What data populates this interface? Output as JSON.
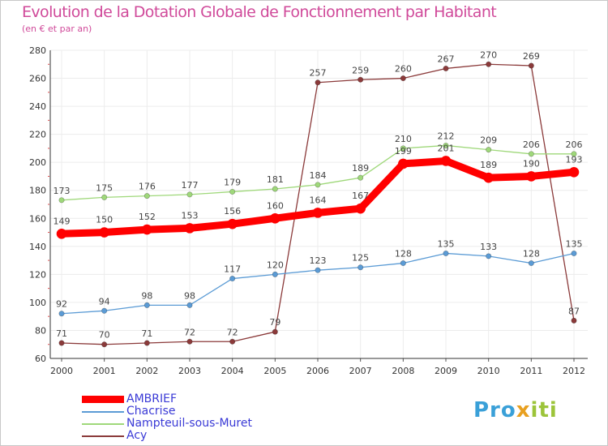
{
  "title": "Evolution de la Dotation Globale de Fonctionnement par Habitant",
  "subtitle": "(en € et par an)",
  "logo": {
    "part1": "Pro",
    "part2": "x",
    "part3": "iti"
  },
  "chart_data": {
    "type": "line",
    "title": "Evolution de la Dotation Globale de Fonctionnement par Habitant",
    "subtitle": "(en € et par an)",
    "xlabel": "",
    "ylabel": "",
    "ylim": [
      60,
      280
    ],
    "yticks": [
      60,
      80,
      100,
      120,
      140,
      160,
      180,
      200,
      220,
      240,
      260,
      280
    ],
    "grid": true,
    "legend_position": "bottom-left",
    "categories": [
      "2000",
      "2001",
      "2002",
      "2003",
      "2004",
      "2005",
      "2006",
      "2007",
      "2008",
      "2009",
      "2010",
      "2011",
      "2012"
    ],
    "series": [
      {
        "name": "AMBRIEF",
        "color": "#ff0000",
        "emphasis": true,
        "values": [
          149,
          150,
          152,
          153,
          156,
          160,
          164,
          167,
          199,
          201,
          189,
          190,
          193
        ]
      },
      {
        "name": "Chacrise",
        "color": "#5b9bd5",
        "values": [
          92,
          94,
          98,
          98,
          117,
          120,
          123,
          125,
          128,
          135,
          133,
          128,
          135
        ]
      },
      {
        "name": "Nampteuil-sous-Muret",
        "color": "#9fd87a",
        "values": [
          173,
          175,
          176,
          177,
          179,
          181,
          184,
          189,
          210,
          212,
          209,
          206,
          206
        ]
      },
      {
        "name": "Acy",
        "color": "#8b3a3a",
        "values": [
          71,
          70,
          71,
          72,
          72,
          79,
          257,
          259,
          260,
          267,
          270,
          269,
          87
        ]
      }
    ]
  }
}
